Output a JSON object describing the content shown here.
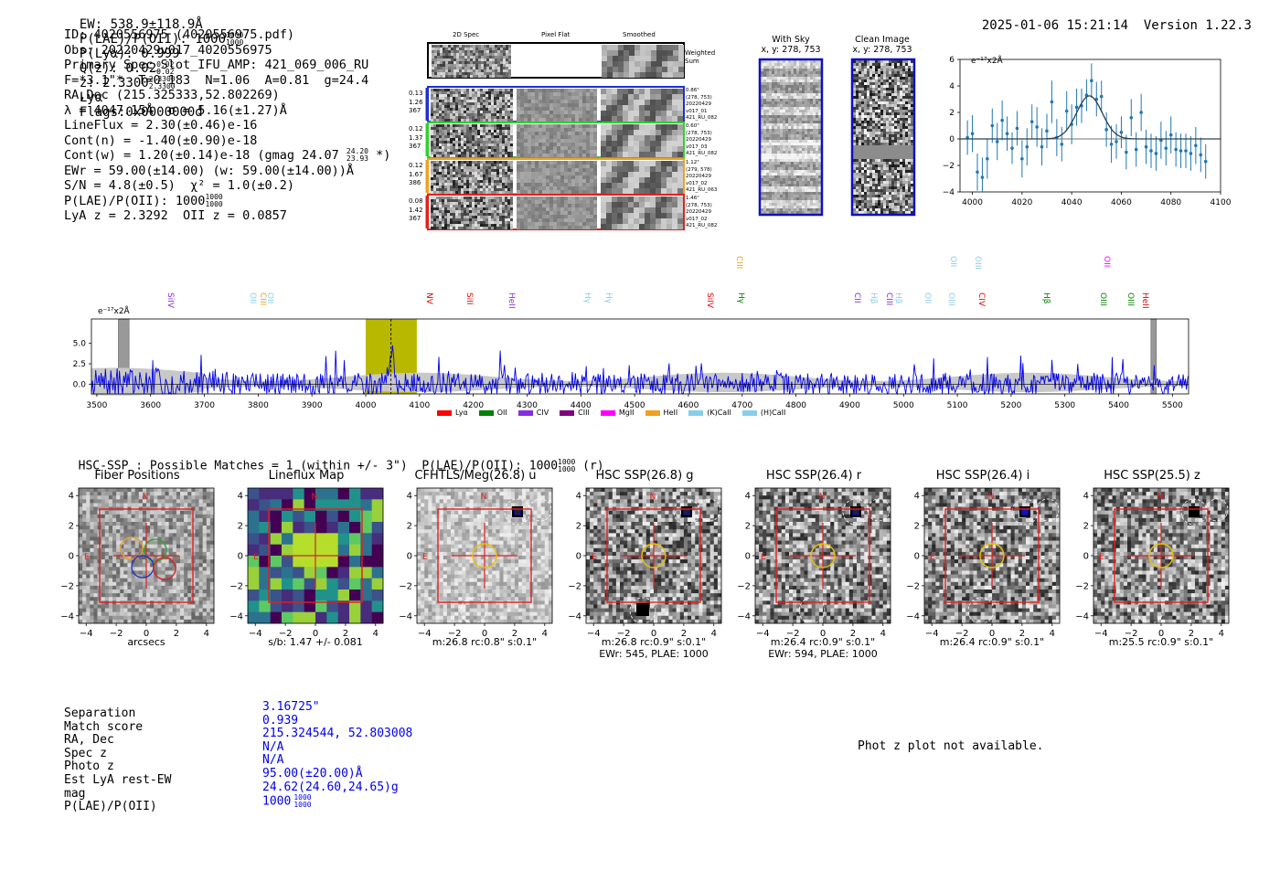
{
  "header": {
    "ew": "EW: 538.9±118.9Å",
    "plae_label": "P(LAE)/P(OII): 1000",
    "plae_frac": [
      "1000",
      "1000"
    ],
    "plya": "P(Lyα): 0.999",
    "qz_label": "Q(z): 0.02",
    "qz_frac": [
      "0.02",
      "0.02"
    ],
    "z_label": "z: 2.3300",
    "z_frac": [
      "2.3300",
      "2.3300"
    ],
    "line": "Lyα",
    "flags": "Flags:0x0000000d",
    "datetime": "2025-01-06 15:21:14",
    "version": "Version 1.22.3"
  },
  "info": {
    "id": "ID: 4020556975 (4020556975.pdf)",
    "obs": "Obs: 20220429v017_4020556975",
    "primary": "Primary Spec_Slot_IFU_AMP: 421_069_006_RU",
    "fline": "F=*3.1\"*  T=0.183  N=1.06  A=0.81  g=24.4",
    "radec": "RA,Dec (215.325333,52.802269)",
    "lambda": "λ = 4047.15Å  σ = 5.16(±1.27)Å",
    "lineflux": "LineFlux = 2.30(±0.46)e-16",
    "contn": "Cont(n) = -1.40(±0.90)e-18",
    "contw": "Cont(w) = 1.20(±0.14)e-18 (gmag 24.07",
    "contw_frac": [
      "24.20",
      "23.93"
    ],
    "contw_end": "*)",
    "ewr": "EWr = 59.00(±14.00) (w: 59.00(±14.00))Å",
    "sn": "S/N = 4.8(±0.5)  χ² = 1.0(±0.2)",
    "plae": "P(LAE)/P(OII): 1000",
    "plae_frac": [
      "1000",
      "1000"
    ],
    "lyaz": "LyA z = 2.3292  OII z = 0.0857"
  },
  "spec2d": {
    "col_titles": [
      "2D Spec",
      "Pixel Flat",
      "Smoothed"
    ],
    "weighted_sum": "Weighted Sum",
    "rows": [
      {
        "left": [
          "0.13",
          "1.26",
          "367"
        ],
        "right": [
          "0.86\"",
          "(278, 753)",
          "20220429",
          "v017_01",
          "421_RU_082"
        ],
        "color": "#1f2fd0"
      },
      {
        "left": [
          "0.12",
          "1.37",
          "367"
        ],
        "right": [
          "0.60\"",
          "(278, 753)",
          "20220429",
          "v017_03",
          "421_RU_082"
        ],
        "color": "#2fd02f"
      },
      {
        "left": [
          "0.12",
          "1.67",
          "386"
        ],
        "right": [
          "1.12\"",
          "(279, 578)",
          "20220429",
          "v017_02",
          "421_RU_063"
        ],
        "color": "#f0a020"
      },
      {
        "left": [
          "0.08",
          "1.42",
          "367"
        ],
        "right": [
          "1.46\"",
          "(278, 753)",
          "20220429",
          "v017_02",
          "421_RU_082"
        ],
        "color": "#e02020"
      }
    ]
  },
  "sky": {
    "with_sky_title": "With Sky",
    "with_sky_sub": "x, y: 278, 753",
    "clean_title": "Clean Image",
    "clean_sub": "x, y: 278, 753"
  },
  "zoom_plot": {
    "scale": "e⁻¹⁷x2Å",
    "xticks": [
      "4000",
      "4020",
      "4040",
      "4060",
      "4080",
      "4100"
    ],
    "yticks": [
      "6",
      "4",
      "2",
      "0",
      "−2",
      "−4"
    ]
  },
  "spectrum": {
    "scale": "e⁻¹⁷x2Å",
    "yticks": [
      "5.0",
      "2.5",
      "0.0"
    ],
    "xticks": [
      "3500",
      "3600",
      "3700",
      "3800",
      "3900",
      "4000",
      "4100",
      "4200",
      "4300",
      "4400",
      "4500",
      "4600",
      "4700",
      "4800",
      "4900",
      "5000",
      "5100",
      "5200",
      "5300",
      "5400",
      "5500"
    ],
    "line_labels": [
      {
        "t": "SiIV",
        "x": 196,
        "y": 330,
        "c": "#8a2be2"
      },
      {
        "t": "OII",
        "x": 286,
        "y": 330,
        "c": "#87ceeb"
      },
      {
        "t": "CIII",
        "x": 297,
        "y": 330,
        "c": "#f0a020"
      },
      {
        "t": "OII",
        "x": 305,
        "y": 330,
        "c": "#87ceeb"
      },
      {
        "t": "NV",
        "x": 479,
        "y": 330,
        "c": "#e00000"
      },
      {
        "t": "SiII",
        "x": 523,
        "y": 330,
        "c": "#e00000"
      },
      {
        "t": "HeII",
        "x": 569,
        "y": 330,
        "c": "#8a2be2"
      },
      {
        "t": "Hγ",
        "x": 652,
        "y": 330,
        "c": "#87ceeb"
      },
      {
        "t": "Hγ",
        "x": 675,
        "y": 330,
        "c": "#87ceeb"
      },
      {
        "t": "CIII",
        "x": 818,
        "y": 290,
        "c": "#f0a020"
      },
      {
        "t": "SiIV",
        "x": 786,
        "y": 330,
        "c": "#e00000"
      },
      {
        "t": "Hγ",
        "x": 820,
        "y": 330,
        "c": "#008000"
      },
      {
        "t": "CII",
        "x": 947,
        "y": 330,
        "c": "#8a2be2"
      },
      {
        "t": "Hβ",
        "x": 965,
        "y": 330,
        "c": "#87ceeb"
      },
      {
        "t": "CIII",
        "x": 982,
        "y": 330,
        "c": "#8a2be2"
      },
      {
        "t": "Hβ",
        "x": 992,
        "y": 330,
        "c": "#87ceeb"
      },
      {
        "t": "OII",
        "x": 1024,
        "y": 330,
        "c": "#87ceeb"
      },
      {
        "t": "OIII",
        "x": 1050,
        "y": 330,
        "c": "#87ceeb"
      },
      {
        "t": "OII",
        "x": 1052,
        "y": 290,
        "c": "#87ceeb"
      },
      {
        "t": "CIV",
        "x": 1083,
        "y": 330,
        "c": "#e00000"
      },
      {
        "t": "OIII",
        "x": 1079,
        "y": 290,
        "c": "#87ceeb"
      },
      {
        "t": "Hβ",
        "x": 1154,
        "y": 330,
        "c": "#008000"
      },
      {
        "t": "OIII",
        "x": 1216,
        "y": 330,
        "c": "#008000"
      },
      {
        "t": "OII",
        "x": 1220,
        "y": 290,
        "c": "#ff00ff"
      },
      {
        "t": "OIII",
        "x": 1246,
        "y": 330,
        "c": "#008000"
      },
      {
        "t": "HeII",
        "x": 1262,
        "y": 330,
        "c": "#e00000"
      }
    ],
    "legend": [
      {
        "t": "Lyα",
        "c": "#ff0000"
      },
      {
        "t": "OII",
        "c": "#008000"
      },
      {
        "t": "CIV",
        "c": "#8a2be2"
      },
      {
        "t": "CIII",
        "c": "#800080"
      },
      {
        "t": "MgII",
        "c": "#ff00ff"
      },
      {
        "t": "HeII",
        "c": "#f0a020"
      },
      {
        "t": "(K)CaII",
        "c": "#87ceeb"
      },
      {
        "t": "(H)CaII",
        "c": "#87ceeb"
      }
    ]
  },
  "hsc": {
    "line": "HSC-SSP : Possible Matches = 1 (within +/- 3\")  P(LAE)/P(OII): 1000",
    "frac": [
      "1000",
      "1000"
    ],
    "suffix": "(r)"
  },
  "panels": [
    {
      "title": "Fiber Positions",
      "cap1": "arcsecs",
      "cap2": ""
    },
    {
      "title": "Lineflux Map",
      "cap1": "s/b: 1.47 +/- 0.081",
      "cap2": ""
    },
    {
      "title": "CFHTLS/Meg(26.8) u",
      "cap1": "m:26.8 rc:0.8\"  s:0.1\"",
      "cap2": ""
    },
    {
      "title": "HSC SSP(26.8) g",
      "cap1": "m:26.8 rc:0.9\"  s:0.1\"",
      "cap2": "EWr: 545, PLAE: 1000"
    },
    {
      "title": "HSC SSP(26.4) r",
      "cap1": "m:26.4 rc:0.9\"  s:0.1\"",
      "cap2": "EWr: 594, PLAE: 1000"
    },
    {
      "title": "HSC SSP(26.4) i",
      "cap1": "m:26.4 rc:0.9\"  s:0.1\"",
      "cap2": ""
    },
    {
      "title": "HSC SSP(25.5) z",
      "cap1": "m:25.5 rc:0.9\"  s:0.1\"",
      "cap2": ""
    }
  ],
  "panel_ticks": {
    "y": [
      "4",
      "2",
      "0",
      "−2",
      "−4"
    ],
    "x": [
      "−4",
      "−2",
      "0",
      "2",
      "4"
    ],
    "n": "N",
    "e": "E"
  },
  "match": {
    "labels": [
      "Separation",
      "Match score",
      "RA, Dec",
      "Spec z",
      "Photo z",
      "Est LyA rest-EW",
      "mag",
      "P(LAE)/P(OII)"
    ],
    "values": [
      "3.16725\"",
      "0.939",
      "215.324544, 52.803008",
      "N/A",
      "N/A",
      "95.00(±20.00)Å",
      "24.62(24.60,24.65)g",
      "1000"
    ],
    "plae_frac": [
      "1000",
      "1000"
    ]
  },
  "photz": "Phot z plot not available.",
  "chart_data": [
    {
      "type": "scatter",
      "title": "",
      "xlabel": "",
      "ylabel": "e-17 x2Å",
      "xlim": [
        3995,
        4100
      ],
      "ylim": [
        -4,
        6
      ],
      "x": [
        3998,
        4000,
        4002,
        4004,
        4006,
        4008,
        4010,
        4012,
        4014,
        4016,
        4018,
        4020,
        4022,
        4024,
        4026,
        4028,
        4030,
        4032,
        4034,
        4036,
        4038,
        4040,
        4042,
        4044,
        4046,
        4048,
        4050,
        4052,
        4054,
        4056,
        4058,
        4060,
        4062,
        4064,
        4066,
        4068,
        4070,
        4072,
        4074,
        4076,
        4078,
        4080,
        4082,
        4084,
        4086,
        4088,
        4090,
        4092,
        4094
      ],
      "y": [
        0.1,
        0.4,
        -2.5,
        -2.9,
        -1.5,
        1.0,
        -0.2,
        1.4,
        0.4,
        -0.7,
        0.8,
        -1.5,
        -0.6,
        1.3,
        0.9,
        -0.6,
        0.6,
        2.8,
        0.1,
        -0.4,
        2.1,
        1.1,
        2.4,
        2.5,
        3.3,
        4.4,
        3.0,
        3.2,
        0.7,
        -0.4,
        -0.2,
        0.5,
        -1.0,
        1.6,
        -0.8,
        2.0,
        -0.6,
        -0.9,
        -1.1,
        -0.1,
        -0.7,
        0.3,
        -0.8,
        -0.9,
        -0.9,
        -1.1,
        -0.5,
        -1.2,
        -1.7
      ],
      "yerr": [
        1.3,
        1.4,
        1.4,
        1.5,
        1.5,
        1.3,
        1.4,
        1.5,
        1.3,
        1.2,
        1.3,
        1.4,
        1.4,
        1.3,
        1.5,
        1.4,
        1.3,
        1.6,
        1.4,
        1.3,
        1.5,
        1.5,
        1.4,
        1.3,
        1.2,
        1.3,
        1.3,
        1.2,
        1.3,
        1.4,
        1.3,
        1.2,
        1.3,
        1.4,
        1.3,
        1.4,
        1.3,
        1.3,
        1.3,
        1.4,
        1.3,
        1.4,
        1.3,
        1.3,
        1.3,
        1.3,
        1.4,
        1.3,
        1.3
      ],
      "fit": {
        "type": "gaussian",
        "center": 4047.15,
        "sigma": 5.16,
        "amplitude": 3.25,
        "baseline": 0.0
      }
    },
    {
      "type": "line",
      "title": "",
      "xlabel": "",
      "ylabel": "e-17 x2Å",
      "xlim": [
        3490,
        5530
      ],
      "ylim": [
        -1.2,
        8.0
      ],
      "highlight_x": [
        4000,
        4095
      ],
      "marker_x": 4047,
      "gray_bands": [
        [
          3540,
          3560
        ],
        [
          5460,
          5470
        ]
      ],
      "x_start": 3490,
      "x_step": 2,
      "seed": 7
    }
  ]
}
